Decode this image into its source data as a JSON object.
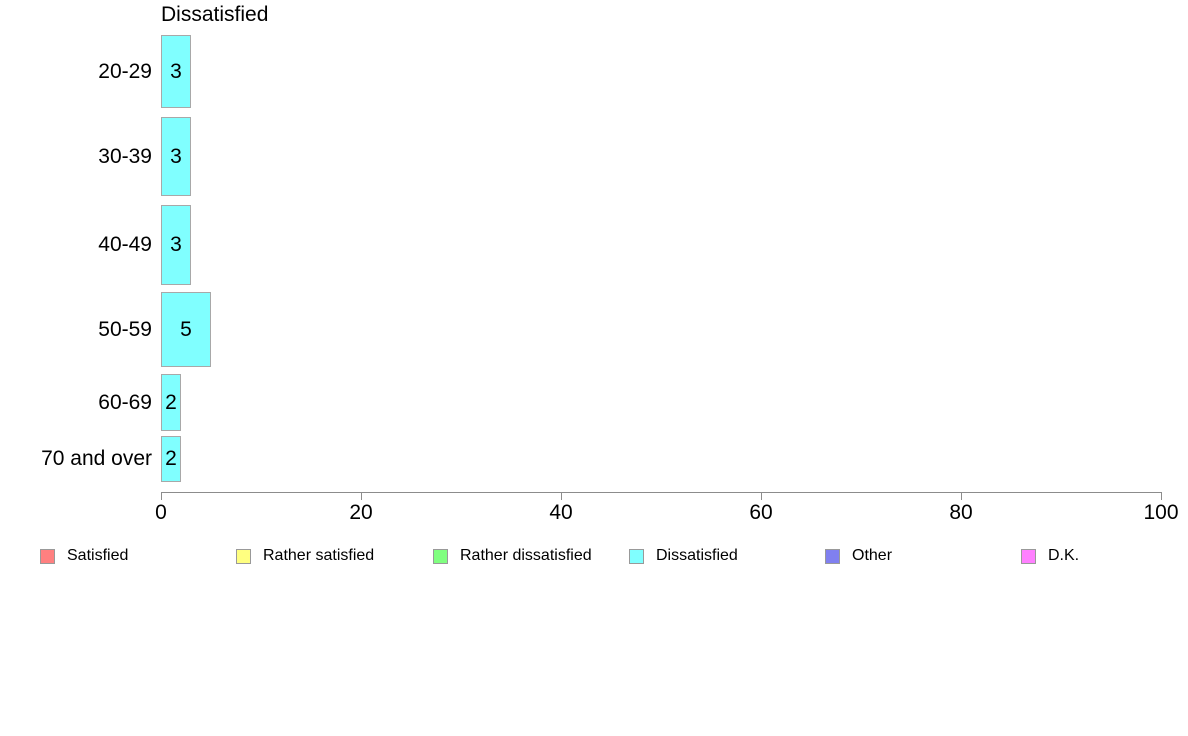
{
  "chart_data": {
    "type": "bar",
    "orientation": "horizontal",
    "title": "Dissatisfied",
    "categories": [
      "20-29",
      "30-39",
      "40-49",
      "50-59",
      "60-69",
      "70 and over"
    ],
    "values": [
      3,
      3,
      3,
      5,
      2,
      2
    ],
    "xlabel": "",
    "ylabel": "",
    "xlim": [
      0,
      100
    ],
    "x_ticks": [
      0,
      20,
      40,
      60,
      80,
      100
    ],
    "grid": "off",
    "bar_color": "#80FFFF",
    "bar_border_color": "#a8a8a8",
    "axis_color": "#8c8c8c",
    "legend_position": "bottom",
    "legend": [
      {
        "label": "Satisfied",
        "color": "#FF8080"
      },
      {
        "label": "Rather satisfied",
        "color": "#FFFF80"
      },
      {
        "label": "Rather dissatisfied",
        "color": "#80FF80"
      },
      {
        "label": "Dissatisfied",
        "color": "#80FFFF"
      },
      {
        "label": "Other",
        "color": "#8080F0"
      },
      {
        "label": "D.K.",
        "color": "#FF80FF"
      }
    ]
  }
}
